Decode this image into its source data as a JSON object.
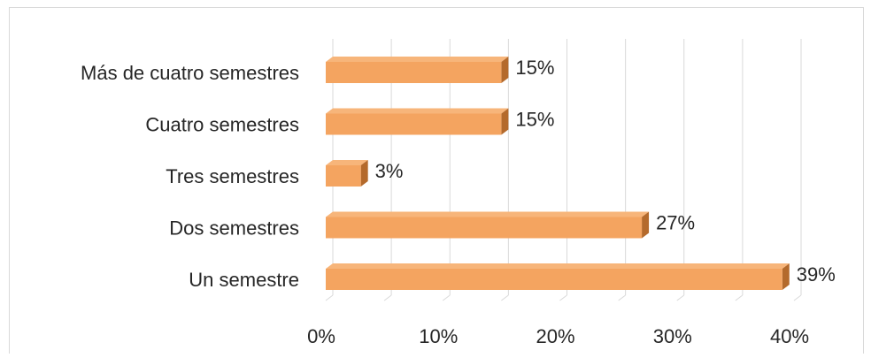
{
  "chart_data": {
    "type": "bar",
    "orientation": "horizontal",
    "style": "3d",
    "categories": [
      "Más de cuatro semestres",
      "Cuatro semestres",
      "Tres semestres",
      "Dos semestres",
      "Un semestre"
    ],
    "values": [
      15,
      15,
      3,
      27,
      39
    ],
    "data_labels": [
      "15%",
      "15%",
      "3%",
      "27%",
      "39%"
    ],
    "x_ticks": [
      "0%",
      "10%",
      "20%",
      "30%",
      "40%"
    ],
    "xlim": [
      0,
      40
    ],
    "title": "",
    "xlabel": "",
    "ylabel": "",
    "grid": true,
    "legend": "none",
    "colors": {
      "bar_front": "#f4a460",
      "bar_top": "#f7b57a",
      "bar_side": "#b46a2c",
      "grid": "#d9d9d9",
      "text": "#262626"
    }
  }
}
